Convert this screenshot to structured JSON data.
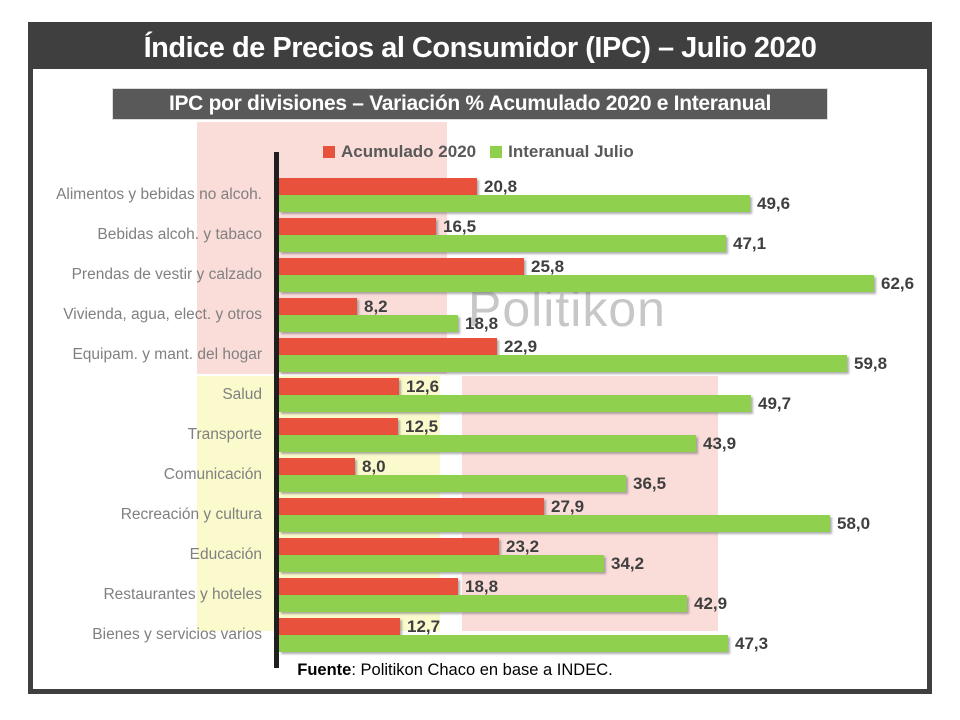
{
  "title": "Índice de Precios al Consumidor (IPC) – Julio 2020",
  "subtitle": "IPC por divisiones – Variación % Acumulado 2020 e Interanual",
  "legend": {
    "items": [
      {
        "label": "Acumulado 2020"
      },
      {
        "label": "Interanual Julio"
      }
    ]
  },
  "watermark": "Politikon",
  "footer": {
    "bold": "Fuente",
    "rest": ": Politikon Chaco en base a INDEC."
  },
  "colors": {
    "accent_red": "#E8513B",
    "accent_green": "#8FD04F",
    "highlight_pink": "#FADCD9",
    "highlight_yellow": "#FAFACD",
    "title_bar": "#3F3F3F",
    "subtitle_bar": "#595959",
    "category_text": "#808080",
    "value_text": "#3F3F3F"
  },
  "chart_data": {
    "type": "bar",
    "orientation": "horizontal",
    "title": "IPC por divisiones – Variación % Acumulado 2020 e Interanual",
    "xlabel": "",
    "ylabel": "",
    "xlim": [
      0,
      68
    ],
    "grid": false,
    "legend_position": "top",
    "categories": [
      "Alimentos y bebidas no alcoh.",
      "Bebidas alcoh. y tabaco",
      "Prendas de vestir y calzado",
      "Vivienda, agua, elect. y otros",
      "Equipam. y mant. del hogar",
      "Salud",
      "Transporte",
      "Comunicación",
      "Recreación y cultura",
      "Educación",
      "Restaurantes y hoteles",
      "Bienes y servicios varios"
    ],
    "series": [
      {
        "name": "Acumulado 2020",
        "color": "#E8513B",
        "values": [
          20.8,
          16.5,
          25.8,
          8.2,
          22.9,
          12.6,
          12.5,
          8.0,
          27.9,
          23.2,
          18.8,
          12.7
        ],
        "labels": [
          "20,8",
          "16,5",
          "25,8",
          "8,2",
          "22,9",
          "12,6",
          "12,5",
          "8,0",
          "27,9",
          "23,2",
          "18,8",
          "12,7"
        ]
      },
      {
        "name": "Interanual Julio",
        "color": "#8FD04F",
        "values": [
          49.6,
          47.1,
          62.6,
          18.8,
          59.8,
          49.7,
          43.9,
          36.5,
          58.0,
          34.2,
          42.9,
          47.3
        ],
        "labels": [
          "49,6",
          "47,1",
          "62,6",
          "18,8",
          "59,8",
          "49,7",
          "43,9",
          "36,5",
          "58,0",
          "34,2",
          "42,9",
          "47,3"
        ]
      }
    ]
  }
}
